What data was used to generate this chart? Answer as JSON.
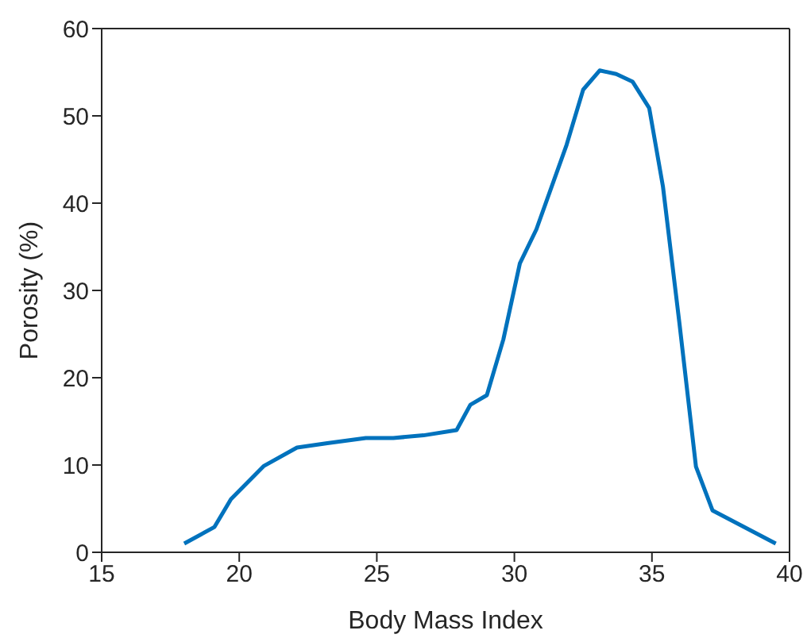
{
  "chart_data": {
    "type": "line",
    "xlabel": "Body Mass Index",
    "ylabel": "Porosity (%)",
    "xlim": [
      15,
      40
    ],
    "xticks": [
      15,
      20,
      25,
      30,
      35,
      40
    ],
    "ylim": [
      0,
      60
    ],
    "yticks": [
      0,
      10,
      20,
      30,
      40,
      50,
      60
    ],
    "marker": "none",
    "line_style": "solid",
    "series": [
      {
        "color": "#0072bd",
        "x": [
          18.0,
          19.1,
          19.7,
          20.9,
          22.1,
          23.2,
          24.6,
          25.6,
          26.7,
          27.9,
          28.4,
          29.0,
          29.6,
          30.2,
          30.8,
          31.9,
          32.5,
          33.1,
          33.7,
          34.3,
          34.9,
          35.4,
          36.0,
          36.6,
          37.2,
          39.5
        ],
        "values": [
          1.0,
          2.9,
          6.1,
          9.9,
          12.0,
          12.5,
          13.1,
          13.1,
          13.4,
          14.0,
          16.9,
          18.0,
          24.4,
          33.1,
          37.0,
          46.7,
          53.0,
          55.2,
          54.8,
          53.9,
          50.9,
          41.9,
          26.2,
          9.8,
          4.8,
          1.0
        ]
      }
    ]
  }
}
